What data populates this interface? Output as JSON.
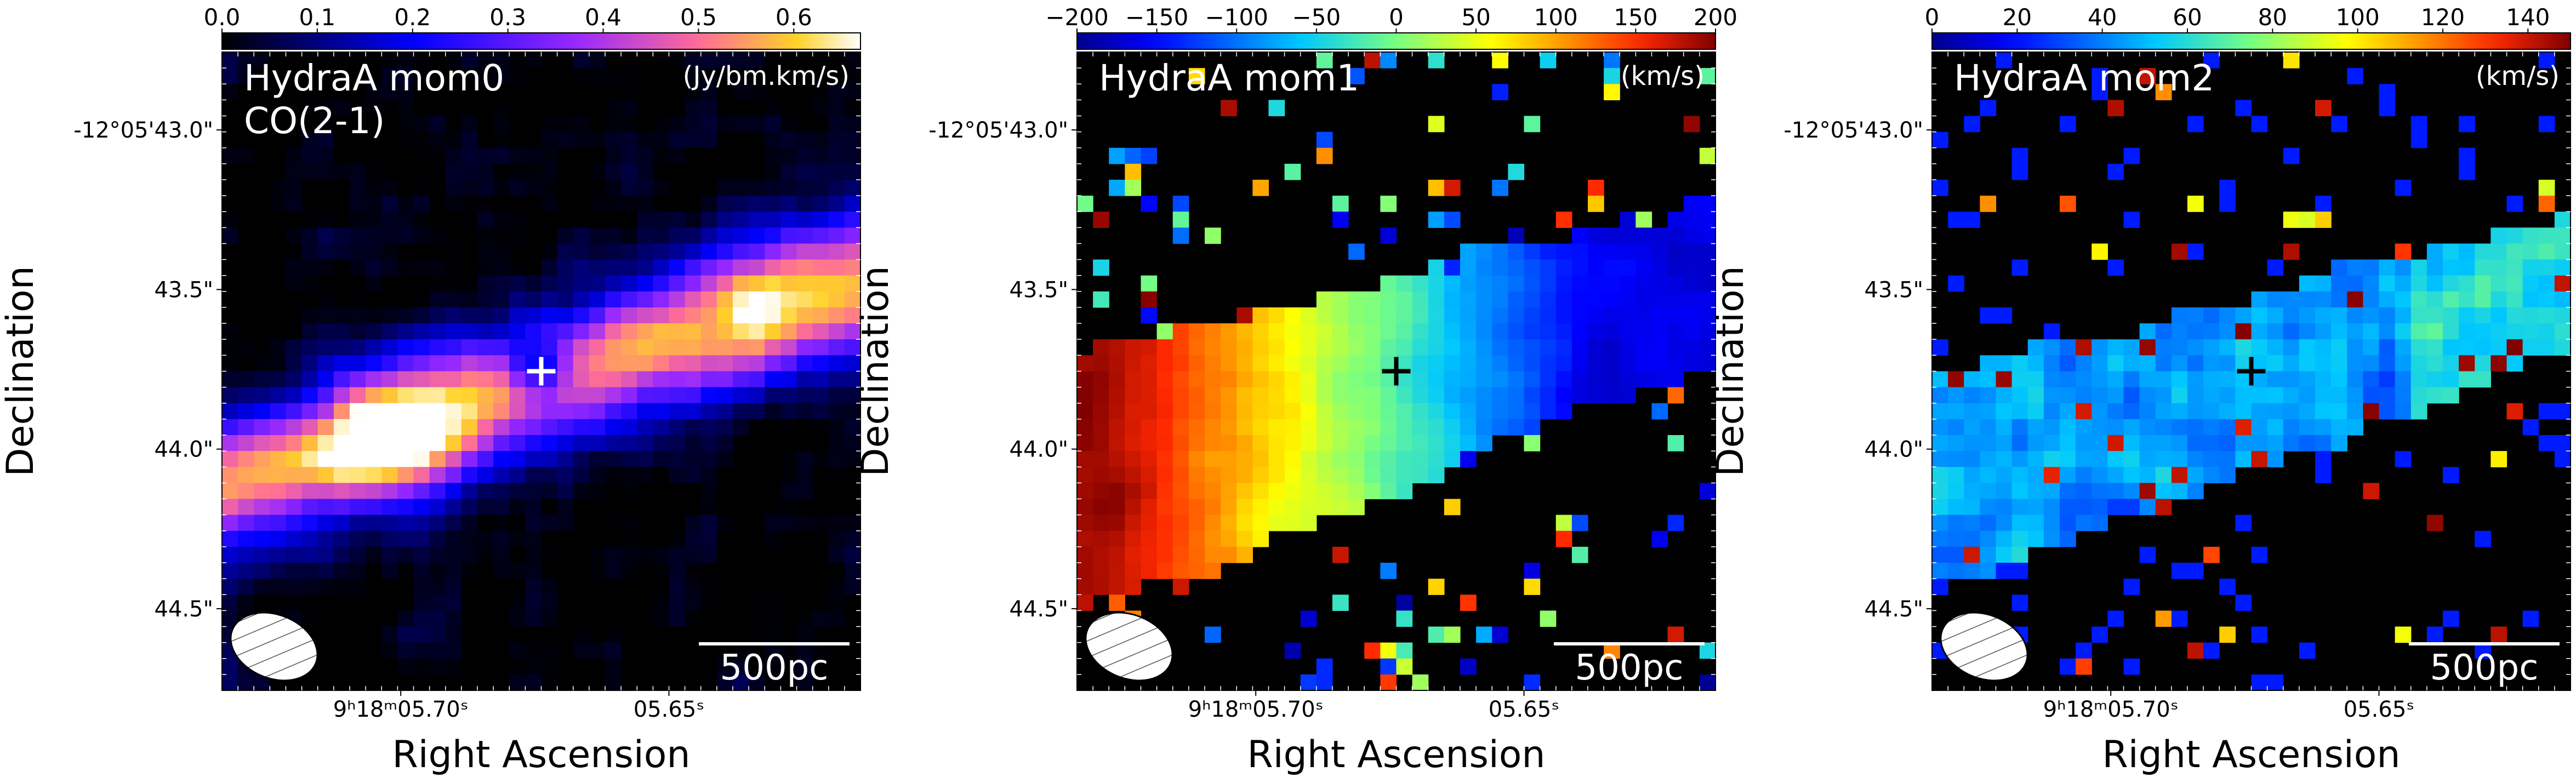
{
  "figure": {
    "panels": [
      {
        "id": "mom0",
        "title": "HydraA mom0",
        "subtitle": "CO(2-1)",
        "unit": "(Jy/bm.km/s)",
        "colormap": "gnuplot2",
        "colorbar_ticks": [
          "0.0",
          "0.1",
          "0.2",
          "0.3",
          "0.4",
          "0.5",
          "0.6"
        ],
        "colorbar_range": [
          0.0,
          0.67
        ],
        "cross_color": "#ffffff",
        "show_ylabel_ticks": true
      },
      {
        "id": "mom1",
        "title": "HydraA mom1",
        "subtitle": "",
        "unit": "(km/s)",
        "colormap": "jet",
        "colorbar_ticks": [
          "−200",
          "−150",
          "−100",
          "−50",
          "0",
          "50",
          "100",
          "150",
          "200"
        ],
        "colorbar_range": [
          -200,
          200
        ],
        "cross_color": "#000000",
        "show_ylabel_ticks": true
      },
      {
        "id": "mom2",
        "title": "HydraA mom2",
        "subtitle": "",
        "unit": "(km/s)",
        "colormap": "jet",
        "colorbar_ticks": [
          "0",
          "20",
          "40",
          "60",
          "80",
          "100",
          "120",
          "140"
        ],
        "colorbar_range": [
          0,
          150
        ],
        "cross_color": "#000000",
        "show_ylabel_ticks": true
      }
    ],
    "xlabel": "Right Ascension",
    "ylabel": "Declination",
    "x_ticks": [
      "9ʰ18ᵐ05.70ˢ",
      "05.65ˢ"
    ],
    "y_ticks": [
      "-12°05'43.0\"",
      "43.5\"",
      "44.0\"",
      "44.5\""
    ],
    "scalebar_label": "500pc"
  },
  "chart_data": [
    {
      "type": "heatmap",
      "title": "HydraA mom0",
      "annotation": "CO(2-1)",
      "unit": "(Jy/bm.km/s)",
      "xlabel": "Right Ascension",
      "ylabel": "Declination",
      "colorbar": {
        "min": 0.0,
        "max": 0.67,
        "ticks": [
          0.0,
          0.1,
          0.2,
          0.3,
          0.4,
          0.5,
          0.6
        ]
      },
      "features": {
        "peak_value": 0.65,
        "emission": "elongated band, brightest at lower-left, fainter extension to upper-right",
        "central_cross_value": 0.2
      }
    },
    {
      "type": "heatmap",
      "title": "HydraA mom1",
      "unit": "(km/s)",
      "xlabel": "Right Ascension",
      "ylabel": "Declination",
      "colorbar": {
        "min": -200,
        "max": 200,
        "ticks": [
          -200,
          -150,
          -100,
          -50,
          0,
          50,
          100,
          150,
          200
        ]
      },
      "features": {
        "east_side": 180,
        "west_side": -170,
        "gradient": "redshifted left, blueshifted right"
      }
    },
    {
      "type": "heatmap",
      "title": "HydraA mom2",
      "unit": "(km/s)",
      "xlabel": "Right Ascension",
      "ylabel": "Declination",
      "colorbar": {
        "min": 0,
        "max": 150,
        "ticks": [
          0,
          20,
          40,
          60,
          80,
          100,
          120,
          140
        ]
      },
      "features": {
        "typical_dispersion": 55,
        "max_dispersion": 145
      }
    }
  ]
}
